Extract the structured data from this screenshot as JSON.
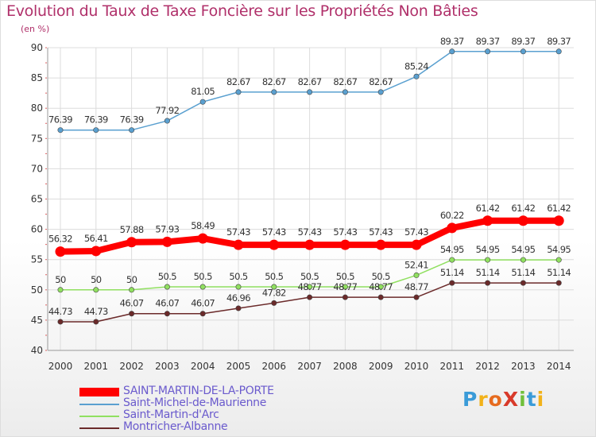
{
  "title": "Evolution du Taux de Taxe Foncière sur les Propriétés Non Bâties",
  "unit": "(en %)",
  "logo": "ProXiti",
  "chart_data": {
    "type": "line",
    "x": [
      "2000",
      "2001",
      "2002",
      "2003",
      "2004",
      "2005",
      "2006",
      "2007",
      "2008",
      "2009",
      "2010",
      "2011",
      "2012",
      "2013",
      "2014"
    ],
    "ylim": [
      40,
      90
    ],
    "yticks": [
      40,
      45,
      50,
      55,
      60,
      65,
      70,
      75,
      80,
      85,
      90
    ],
    "grid": true,
    "legend_position": "bottom-left",
    "series": [
      {
        "name": "SAINT-MARTIN-DE-LA-PORTE",
        "color": "#ff0000",
        "bold": true,
        "values": [
          56.32,
          56.41,
          57.88,
          57.93,
          58.49,
          57.43,
          57.43,
          57.43,
          57.43,
          57.43,
          57.43,
          60.22,
          61.42,
          61.42,
          61.42
        ],
        "labels": [
          "56.32",
          "56.41",
          "57.88",
          "57.93",
          "58.49",
          "57.43",
          "57.43",
          "57.43",
          "57.43",
          "57.43",
          "57.43",
          "60.22",
          "61.42",
          "61.42",
          "61.42"
        ]
      },
      {
        "name": "Saint-Michel-de-Maurienne",
        "color": "#5aa0d0",
        "bold": false,
        "values": [
          76.39,
          76.39,
          76.39,
          77.92,
          81.05,
          82.67,
          82.67,
          82.67,
          82.67,
          82.67,
          85.24,
          89.37,
          89.37,
          89.37,
          89.37
        ],
        "labels": [
          "76.39",
          "76.39",
          "76.39",
          "77.92",
          "81.05",
          "82.67",
          "82.67",
          "82.67",
          "82.67",
          "82.67",
          "85.24",
          "89.37",
          "89.37",
          "89.37",
          "89.37"
        ]
      },
      {
        "name": "Saint-Martin-d'Arc",
        "color": "#90e060",
        "bold": false,
        "values": [
          50,
          50,
          50,
          50.5,
          50.5,
          50.5,
          50.5,
          50.5,
          50.5,
          50.5,
          52.41,
          54.95,
          54.95,
          54.95,
          54.95
        ],
        "labels": [
          "50",
          "50",
          "50",
          "50.5",
          "50.5",
          "50.5",
          "50.5",
          "50.5",
          "50.5",
          "50.5",
          "52.41",
          "54.95",
          "54.95",
          "54.95",
          "54.95"
        ]
      },
      {
        "name": "Montricher-Albanne",
        "color": "#6b2a2a",
        "bold": false,
        "values": [
          44.73,
          44.73,
          46.07,
          46.07,
          46.07,
          46.96,
          47.82,
          48.77,
          48.77,
          48.77,
          48.77,
          51.14,
          51.14,
          51.14,
          51.14
        ],
        "labels": [
          "44.73",
          "44.73",
          "46.07",
          "46.07",
          "46.07",
          "46.96",
          "47.82",
          "48.77",
          "48.77",
          "48.77",
          "48.77",
          "51.14",
          "51.14",
          "51.14",
          "51.14"
        ]
      }
    ]
  }
}
